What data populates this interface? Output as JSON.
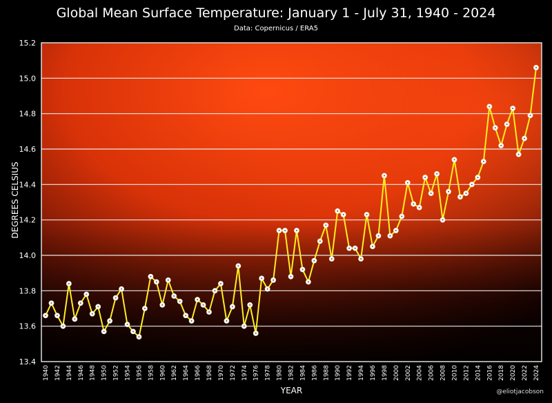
{
  "chart_data": {
    "type": "line",
    "title": "Global Mean Surface Temperature: January 1 - July 31, 1940 - 2024",
    "subtitle": "Data: Copernicus / ERA5",
    "xlabel": "YEAR",
    "ylabel": "DEGREES CELSIUS",
    "credit": "@eliotjacobson",
    "ylim": [
      13.4,
      15.2
    ],
    "yticks": [
      "13.4",
      "13.6",
      "13.8",
      "14.0",
      "14.2",
      "14.4",
      "14.6",
      "14.8",
      "15.0",
      "15.2"
    ],
    "grid": true,
    "line_color": "#ffee22",
    "marker_color": "#ffffff",
    "x": [
      1940,
      1941,
      1942,
      1943,
      1944,
      1945,
      1946,
      1947,
      1948,
      1949,
      1950,
      1951,
      1952,
      1953,
      1954,
      1955,
      1956,
      1957,
      1958,
      1959,
      1960,
      1961,
      1962,
      1963,
      1964,
      1965,
      1966,
      1967,
      1968,
      1969,
      1970,
      1971,
      1972,
      1973,
      1974,
      1975,
      1976,
      1977,
      1978,
      1979,
      1980,
      1981,
      1982,
      1983,
      1984,
      1985,
      1986,
      1987,
      1988,
      1989,
      1990,
      1991,
      1992,
      1993,
      1994,
      1995,
      1996,
      1997,
      1998,
      1999,
      2000,
      2001,
      2002,
      2003,
      2004,
      2005,
      2006,
      2007,
      2008,
      2009,
      2010,
      2011,
      2012,
      2013,
      2014,
      2015,
      2016,
      2017,
      2018,
      2019,
      2020,
      2021,
      2022,
      2023,
      2024
    ],
    "y": [
      13.66,
      13.73,
      13.66,
      13.6,
      13.84,
      13.64,
      13.73,
      13.78,
      13.67,
      13.71,
      13.57,
      13.63,
      13.76,
      13.81,
      13.61,
      13.57,
      13.54,
      13.7,
      13.88,
      13.85,
      13.72,
      13.86,
      13.77,
      13.74,
      13.66,
      13.63,
      13.75,
      13.72,
      13.68,
      13.8,
      13.84,
      13.63,
      13.71,
      13.94,
      13.6,
      13.72,
      13.56,
      13.87,
      13.81,
      13.86,
      14.14,
      14.14,
      13.88,
      14.14,
      13.92,
      13.85,
      13.97,
      14.08,
      14.17,
      13.98,
      14.25,
      14.23,
      14.04,
      14.04,
      13.98,
      14.23,
      14.05,
      14.11,
      14.45,
      14.11,
      14.14,
      14.22,
      14.41,
      14.29,
      14.27,
      14.44,
      14.35,
      14.46,
      14.2,
      14.36,
      14.54,
      14.33,
      14.35,
      14.4,
      14.44,
      14.53,
      14.84,
      14.72,
      14.62,
      14.74,
      14.83,
      14.57,
      14.66,
      14.79,
      15.06
    ]
  }
}
